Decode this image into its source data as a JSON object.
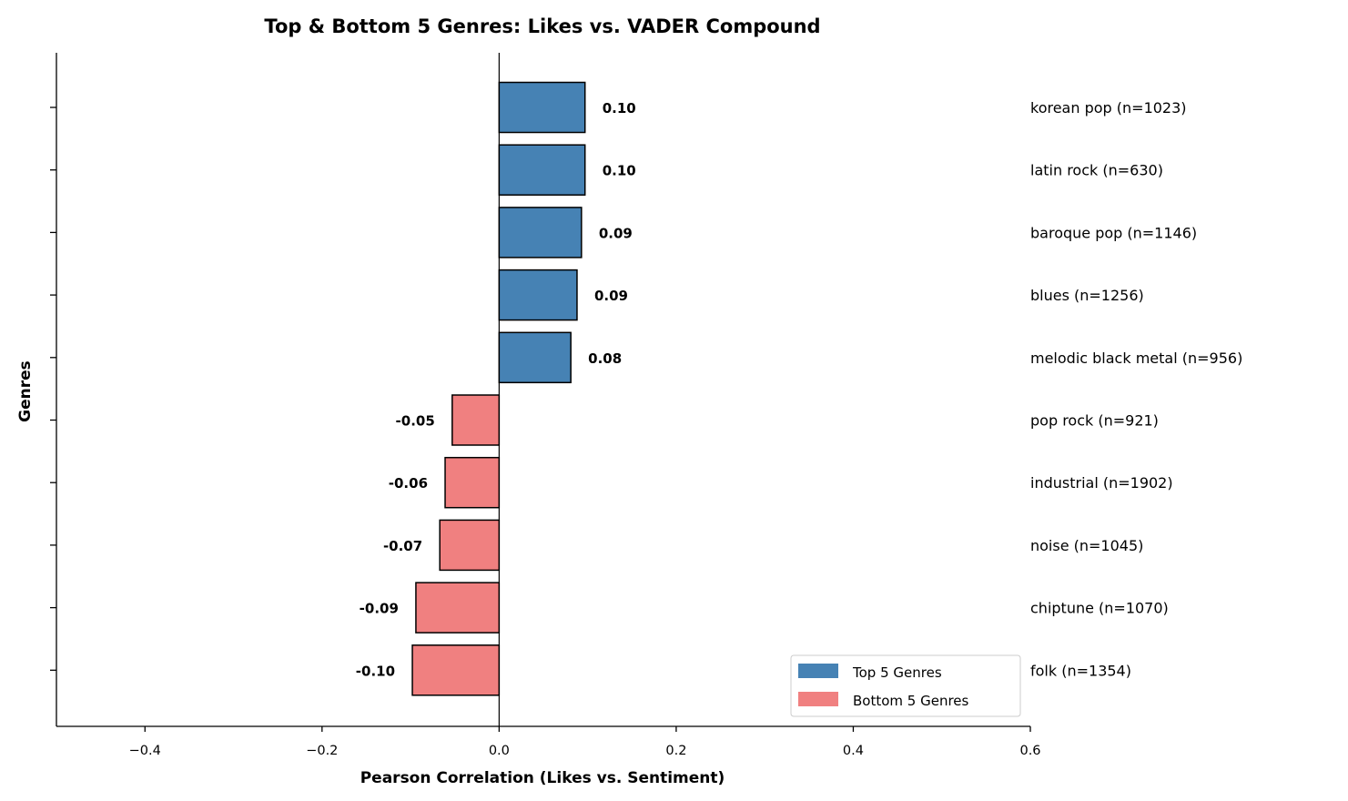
{
  "chart_data": {
    "type": "bar",
    "orientation": "horizontal",
    "title": "Top & Bottom 5 Genres: Likes vs. VADER Compound",
    "xlabel": "Pearson Correlation (Likes vs. Sentiment)",
    "ylabel": "Genres",
    "xlim": [
      -0.5,
      0.6
    ],
    "xticks": [
      -0.4,
      -0.2,
      0.0,
      0.2,
      0.4,
      0.6
    ],
    "xtick_labels": [
      "−0.4",
      "−0.2",
      "0.0",
      "0.2",
      "0.4",
      "0.6"
    ],
    "grid": false,
    "legend_position": "lower-right",
    "series": [
      {
        "name": "Top 5 Genres",
        "color": "#4682b4"
      },
      {
        "name": "Bottom 5 Genres",
        "color": "#f08080"
      }
    ],
    "bars": [
      {
        "genre": "korean pop (n=1023)",
        "value": 0.097,
        "label": "0.10",
        "group": "top"
      },
      {
        "genre": "latin rock (n=630)",
        "value": 0.097,
        "label": "0.10",
        "group": "top"
      },
      {
        "genre": "baroque pop (n=1146)",
        "value": 0.093,
        "label": "0.09",
        "group": "top"
      },
      {
        "genre": "blues (n=1256)",
        "value": 0.088,
        "label": "0.09",
        "group": "top"
      },
      {
        "genre": "melodic black metal (n=956)",
        "value": 0.081,
        "label": "0.08",
        "group": "top"
      },
      {
        "genre": "pop rock (n=921)",
        "value": -0.053,
        "label": "-0.05",
        "group": "bottom"
      },
      {
        "genre": "industrial (n=1902)",
        "value": -0.061,
        "label": "-0.06",
        "group": "bottom"
      },
      {
        "genre": "noise (n=1045)",
        "value": -0.067,
        "label": "-0.07",
        "group": "bottom"
      },
      {
        "genre": "chiptune (n=1070)",
        "value": -0.094,
        "label": "-0.09",
        "group": "bottom"
      },
      {
        "genre": "folk (n=1354)",
        "value": -0.098,
        "label": "-0.10",
        "group": "bottom"
      }
    ]
  }
}
